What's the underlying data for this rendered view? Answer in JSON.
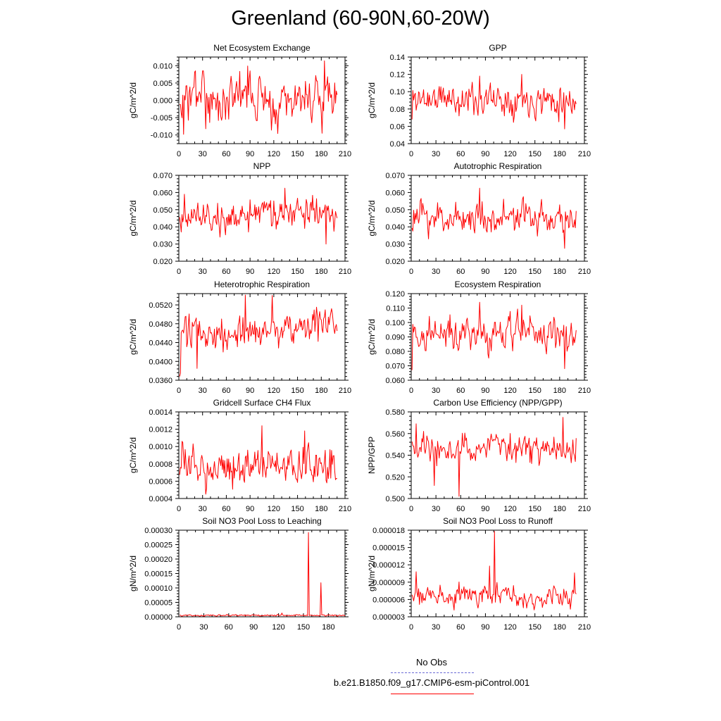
{
  "title": "Greenland (60-90N,60-20W)",
  "legend": {
    "entries": [
      {
        "label": "No Obs",
        "color": "#6b6bd6",
        "style": "dashed"
      },
      {
        "label": "b.e21.B1850.f09_g17.CMIP6-esm-piControl.001",
        "color": "#ff0000",
        "style": "solid"
      }
    ]
  },
  "chart_data": [
    {
      "type": "line",
      "title": "Net Ecosystem Exchange",
      "xlabel": "",
      "ylabel": "gC/m^2/d",
      "xlim": [
        0,
        210
      ],
      "ylim": [
        -0.0125,
        0.0125
      ],
      "xticks": [
        "0",
        "30",
        "60",
        "90",
        "120",
        "150",
        "180",
        "210"
      ],
      "yticks": [
        {
          "v": -0.01,
          "label": "-0.010"
        },
        {
          "v": -0.005,
          "label": "-0.005"
        },
        {
          "v": 0,
          "label": "0.000"
        },
        {
          "v": 0.005,
          "label": "0.005"
        },
        {
          "v": 0.01,
          "label": "0.010"
        }
      ],
      "gen": {
        "base": 0.0005,
        "amp": 0.0038,
        "trend": 0.0,
        "seed": 3,
        "clampMin": -0.0098,
        "clampMax": 0.0085,
        "spikes": [
          [
            5,
            -0.0098
          ],
          [
            86,
            0.0099
          ],
          [
            183,
            0.0114
          ],
          [
            180,
            -0.0095
          ],
          [
            116,
            -0.0086
          ],
          [
            33,
            -0.0082
          ]
        ]
      }
    },
    {
      "type": "line",
      "title": "GPP",
      "xlabel": "",
      "ylabel": "gC/m^2/d",
      "xlim": [
        0,
        210
      ],
      "ylim": [
        0.04,
        0.14
      ],
      "xticks": [
        "0",
        "30",
        "60",
        "90",
        "120",
        "150",
        "180",
        "210"
      ],
      "yticks": [
        {
          "v": 0.04,
          "label": "0.04"
        },
        {
          "v": 0.06,
          "label": "0.06"
        },
        {
          "v": 0.08,
          "label": "0.08"
        },
        {
          "v": 0.1,
          "label": "0.10"
        },
        {
          "v": 0.12,
          "label": "0.12"
        },
        {
          "v": 0.14,
          "label": "0.14"
        }
      ],
      "gen": {
        "base": 0.092,
        "amp": 0.011,
        "trend": 0.0,
        "seed": 11,
        "clampMin": 0.06,
        "clampMax": 0.12,
        "spikes": [
          [
            0,
            0.068
          ],
          [
            82,
            0.118
          ],
          [
            133,
            0.12
          ],
          [
            185,
            0.057
          ],
          [
            57,
            0.072
          ]
        ]
      }
    },
    {
      "type": "line",
      "title": "NPP",
      "xlabel": "",
      "ylabel": "gC/m^2/d",
      "xlim": [
        0,
        210
      ],
      "ylim": [
        0.02,
        0.07
      ],
      "xticks": [
        "0",
        "30",
        "60",
        "90",
        "120",
        "150",
        "180",
        "210"
      ],
      "yticks": [
        {
          "v": 0.02,
          "label": "0.020"
        },
        {
          "v": 0.03,
          "label": "0.030"
        },
        {
          "v": 0.04,
          "label": "0.040"
        },
        {
          "v": 0.05,
          "label": "0.050"
        },
        {
          "v": 0.06,
          "label": "0.060"
        },
        {
          "v": 0.07,
          "label": "0.070"
        }
      ],
      "gen": {
        "base": 0.0465,
        "amp": 0.0055,
        "trend": 0.0,
        "seed": 17,
        "clampMin": 0.032,
        "clampMax": 0.062,
        "spikes": [
          [
            133,
            0.0625
          ],
          [
            185,
            0.03
          ],
          [
            2,
            0.037
          ],
          [
            6,
            0.059
          ]
        ]
      }
    },
    {
      "type": "line",
      "title": "Autotrophic Respiration",
      "xlabel": "",
      "ylabel": "gC/m^2/d",
      "xlim": [
        0,
        210
      ],
      "ylim": [
        0.02,
        0.07
      ],
      "xticks": [
        "0",
        "30",
        "60",
        "90",
        "120",
        "150",
        "180",
        "210"
      ],
      "yticks": [
        {
          "v": 0.02,
          "label": "0.020"
        },
        {
          "v": 0.03,
          "label": "0.030"
        },
        {
          "v": 0.04,
          "label": "0.040"
        },
        {
          "v": 0.05,
          "label": "0.050"
        },
        {
          "v": 0.06,
          "label": "0.060"
        },
        {
          "v": 0.07,
          "label": "0.070"
        }
      ],
      "gen": {
        "base": 0.0455,
        "amp": 0.0055,
        "trend": 0.0,
        "seed": 23,
        "clampMin": 0.03,
        "clampMax": 0.06,
        "spikes": [
          [
            82,
            0.0625
          ],
          [
            185,
            0.0275
          ],
          [
            20,
            0.033
          ]
        ]
      }
    },
    {
      "type": "line",
      "title": "Heterotrophic Respiration",
      "xlabel": "",
      "ylabel": "gC/m^2/d",
      "xlim": [
        0,
        210
      ],
      "ylim": [
        0.036,
        0.0544
      ],
      "xticks": [
        "0",
        "30",
        "60",
        "90",
        "120",
        "150",
        "180",
        "210"
      ],
      "yticks": [
        {
          "v": 0.036,
          "label": "0.0360"
        },
        {
          "v": 0.04,
          "label": "0.0400"
        },
        {
          "v": 0.044,
          "label": "0.0440"
        },
        {
          "v": 0.048,
          "label": "0.0480"
        },
        {
          "v": 0.052,
          "label": "0.0520"
        }
      ],
      "gen": {
        "base": 0.0455,
        "amp": 0.0022,
        "trend": 1.3e-05,
        "seed": 31,
        "clampMin": 0.0385,
        "clampMax": 0.0535,
        "spikes": [
          [
            0,
            0.0368
          ],
          [
            1,
            0.0375
          ],
          [
            83,
            0.0541
          ],
          [
            117,
            0.054
          ],
          [
            22,
            0.0385
          ]
        ]
      }
    },
    {
      "type": "line",
      "title": "Ecosystem Respiration",
      "xlabel": "",
      "ylabel": "gC/m^2/d",
      "xlim": [
        0,
        210
      ],
      "ylim": [
        0.06,
        0.12
      ],
      "xticks": [
        "0",
        "30",
        "60",
        "90",
        "120",
        "150",
        "180",
        "210"
      ],
      "yticks": [
        {
          "v": 0.06,
          "label": "0.060"
        },
        {
          "v": 0.07,
          "label": "0.070"
        },
        {
          "v": 0.08,
          "label": "0.080"
        },
        {
          "v": 0.09,
          "label": "0.090"
        },
        {
          "v": 0.1,
          "label": "0.100"
        },
        {
          "v": 0.11,
          "label": "0.110"
        },
        {
          "v": 0.12,
          "label": "0.120"
        }
      ],
      "gen": {
        "base": 0.092,
        "amp": 0.0075,
        "trend": 0.0,
        "seed": 41,
        "clampMin": 0.07,
        "clampMax": 0.11,
        "spikes": [
          [
            82,
            0.114
          ],
          [
            133,
            0.112
          ],
          [
            185,
            0.068
          ],
          [
            0,
            0.067
          ]
        ]
      }
    },
    {
      "type": "line",
      "title": "Gridcell Surface CH4 Flux",
      "xlabel": "",
      "ylabel": "gC/m^2/d",
      "xlim": [
        0,
        210
      ],
      "ylim": [
        0.0004,
        0.0014
      ],
      "xticks": [
        "0",
        "30",
        "60",
        "90",
        "120",
        "150",
        "180",
        "210"
      ],
      "yticks": [
        {
          "v": 0.0004,
          "label": "0.0004"
        },
        {
          "v": 0.0006,
          "label": "0.0006"
        },
        {
          "v": 0.0008,
          "label": "0.0008"
        },
        {
          "v": 0.001,
          "label": "0.0010"
        },
        {
          "v": 0.0012,
          "label": "0.0012"
        },
        {
          "v": 0.0014,
          "label": "0.0014"
        }
      ],
      "gen": {
        "base": 0.00078,
        "amp": 0.00012,
        "trend": 0.0,
        "seed": 53,
        "clampMin": 0.00048,
        "clampMax": 0.00112,
        "spikes": [
          [
            104,
            0.00124
          ],
          [
            33,
            0.00045
          ],
          [
            158,
            0.00118
          ],
          [
            3,
            0.00106
          ]
        ]
      }
    },
    {
      "type": "line",
      "title": "Carbon Use Efficiency (NPP/GPP)",
      "xlabel": "",
      "ylabel": "NPP/GPP",
      "xlim": [
        0,
        210
      ],
      "ylim": [
        0.5,
        0.58
      ],
      "xticks": [
        "0",
        "30",
        "60",
        "90",
        "120",
        "150",
        "180",
        "210"
      ],
      "yticks": [
        {
          "v": 0.5,
          "label": "0.500"
        },
        {
          "v": 0.52,
          "label": "0.520"
        },
        {
          "v": 0.54,
          "label": "0.540"
        },
        {
          "v": 0.56,
          "label": "0.560"
        },
        {
          "v": 0.58,
          "label": "0.580"
        }
      ],
      "gen": {
        "base": 0.546,
        "amp": 0.0085,
        "trend": 0.0,
        "seed": 67,
        "clampMin": 0.52,
        "clampMax": 0.568,
        "spikes": [
          [
            57,
            0.502
          ],
          [
            183,
            0.575
          ],
          [
            27,
            0.512
          ],
          [
            5,
            0.569
          ]
        ]
      }
    },
    {
      "type": "line",
      "title": "Soil NO3 Pool Loss to Leaching",
      "xlabel": "",
      "ylabel": "gN/m^2/d",
      "xlim": [
        0,
        200
      ],
      "ylim": [
        0,
        0.0003
      ],
      "xticks": [
        "0",
        "30",
        "60",
        "90",
        "120",
        "150",
        "180"
      ],
      "yticks": [
        {
          "v": 0,
          "label": "0.00000"
        },
        {
          "v": 5e-05,
          "label": "0.00005"
        },
        {
          "v": 0.0001,
          "label": "0.00010"
        },
        {
          "v": 0.00015,
          "label": "0.00015"
        },
        {
          "v": 0.0002,
          "label": "0.00020"
        },
        {
          "v": 0.00025,
          "label": "0.00025"
        },
        {
          "v": 0.0003,
          "label": "0.00030"
        }
      ],
      "gen": {
        "base": 5e-06,
        "amp": 1.5e-06,
        "trend": 0.0,
        "seed": 79,
        "clampMin": 1e-06,
        "clampMax": 1e-05,
        "spikes": [
          [
            155,
            0.000292
          ],
          [
            170,
            0.000118
          ],
          [
            123,
            1.3e-05
          ],
          [
            154,
            4e-06
          ],
          [
            169,
            5e-06
          ]
        ]
      }
    },
    {
      "type": "line",
      "title": "Soil NO3 Pool Loss to Runoff",
      "xlabel": "",
      "ylabel": "gN/m^2/d",
      "xlim": [
        0,
        210
      ],
      "ylim": [
        3e-06,
        1.8e-05
      ],
      "xticks": [
        "0",
        "30",
        "60",
        "90",
        "120",
        "150",
        "180",
        "210"
      ],
      "yticks": [
        {
          "v": 3e-06,
          "label": "0.000003"
        },
        {
          "v": 6e-06,
          "label": "0.000006"
        },
        {
          "v": 9e-06,
          "label": "0.000009"
        },
        {
          "v": 1.2e-05,
          "label": "0.000012"
        },
        {
          "v": 1.5e-05,
          "label": "0.000015"
        },
        {
          "v": 1.8e-05,
          "label": "0.000018"
        }
      ],
      "gen": {
        "base": 6.6e-06,
        "amp": 1.1e-06,
        "trend": 0.0,
        "seed": 97,
        "clampMin": 3.8e-06,
        "clampMax": 1.05e-05,
        "spikes": [
          [
            100,
            1.78e-05
          ],
          [
            94,
            1.18e-05
          ],
          [
            5,
            1.08e-05
          ],
          [
            197,
            1.06e-05
          ]
        ]
      }
    }
  ]
}
